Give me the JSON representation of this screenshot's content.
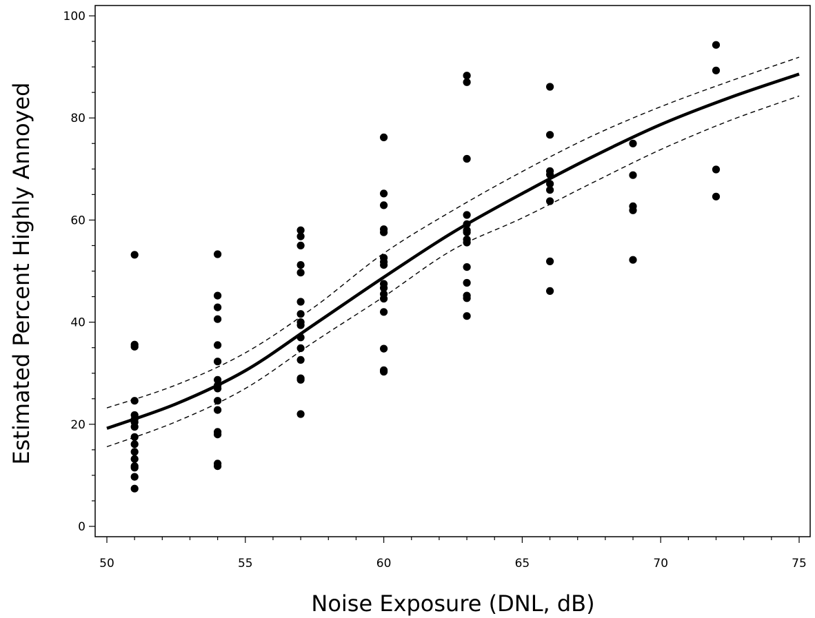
{
  "chart_data": {
    "type": "scatter",
    "title": "",
    "xlabel": "Noise Exposure (DNL, dB)",
    "ylabel": "Estimated Percent Highly Annoyed",
    "xlim": [
      49.6,
      75.6
    ],
    "ylim": [
      -3,
      102
    ],
    "x_ticks": [
      50,
      55,
      60,
      65,
      70,
      75
    ],
    "y_ticks": [
      0,
      20,
      40,
      60,
      80,
      100
    ],
    "x_minor_step": 1,
    "y_minor_step": 5,
    "grid": false,
    "legend": "none",
    "colors": {
      "points": "#000000",
      "fit": "#000000",
      "ci": "#000000"
    },
    "points": [
      {
        "x": 51,
        "y": 53.2
      },
      {
        "x": 51,
        "y": 35.6
      },
      {
        "x": 51,
        "y": 35.2
      },
      {
        "x": 51,
        "y": 24.6
      },
      {
        "x": 51,
        "y": 21.8
      },
      {
        "x": 51,
        "y": 21.0
      },
      {
        "x": 51,
        "y": 20.4
      },
      {
        "x": 51,
        "y": 19.5
      },
      {
        "x": 51,
        "y": 17.5
      },
      {
        "x": 51,
        "y": 16.1
      },
      {
        "x": 51,
        "y": 14.6
      },
      {
        "x": 51,
        "y": 13.2
      },
      {
        "x": 51,
        "y": 11.8
      },
      {
        "x": 51,
        "y": 11.5
      },
      {
        "x": 51,
        "y": 9.7
      },
      {
        "x": 51,
        "y": 7.4
      },
      {
        "x": 54,
        "y": 53.3
      },
      {
        "x": 54,
        "y": 45.2
      },
      {
        "x": 54,
        "y": 42.9
      },
      {
        "x": 54,
        "y": 40.6
      },
      {
        "x": 54,
        "y": 35.5
      },
      {
        "x": 54,
        "y": 32.3
      },
      {
        "x": 54,
        "y": 28.7
      },
      {
        "x": 54,
        "y": 27.6
      },
      {
        "x": 54,
        "y": 27.0
      },
      {
        "x": 54,
        "y": 24.6
      },
      {
        "x": 54,
        "y": 22.8
      },
      {
        "x": 54,
        "y": 18.5
      },
      {
        "x": 54,
        "y": 18.0
      },
      {
        "x": 54,
        "y": 12.3
      },
      {
        "x": 54,
        "y": 11.8
      },
      {
        "x": 57,
        "y": 58.0
      },
      {
        "x": 57,
        "y": 56.8
      },
      {
        "x": 57,
        "y": 55.0
      },
      {
        "x": 57,
        "y": 51.2
      },
      {
        "x": 57,
        "y": 49.7
      },
      {
        "x": 57,
        "y": 44.0
      },
      {
        "x": 57,
        "y": 41.6
      },
      {
        "x": 57,
        "y": 40.0
      },
      {
        "x": 57,
        "y": 39.4
      },
      {
        "x": 57,
        "y": 37.0
      },
      {
        "x": 57,
        "y": 34.9
      },
      {
        "x": 57,
        "y": 32.6
      },
      {
        "x": 57,
        "y": 29.0
      },
      {
        "x": 57,
        "y": 28.7
      },
      {
        "x": 57,
        "y": 22.0
      },
      {
        "x": 60,
        "y": 76.2
      },
      {
        "x": 60,
        "y": 65.2
      },
      {
        "x": 60,
        "y": 62.9
      },
      {
        "x": 60,
        "y": 58.2
      },
      {
        "x": 60,
        "y": 57.6
      },
      {
        "x": 60,
        "y": 52.6
      },
      {
        "x": 60,
        "y": 51.8
      },
      {
        "x": 60,
        "y": 51.2
      },
      {
        "x": 60,
        "y": 47.5
      },
      {
        "x": 60,
        "y": 46.7
      },
      {
        "x": 60,
        "y": 45.5
      },
      {
        "x": 60,
        "y": 44.6
      },
      {
        "x": 60,
        "y": 42.0
      },
      {
        "x": 60,
        "y": 34.8
      },
      {
        "x": 60,
        "y": 30.6
      },
      {
        "x": 60,
        "y": 30.3
      },
      {
        "x": 63,
        "y": 88.3
      },
      {
        "x": 63,
        "y": 87.0
      },
      {
        "x": 63,
        "y": 72.0
      },
      {
        "x": 63,
        "y": 61.0
      },
      {
        "x": 63,
        "y": 59.2
      },
      {
        "x": 63,
        "y": 58.0
      },
      {
        "x": 63,
        "y": 57.6
      },
      {
        "x": 63,
        "y": 56.2
      },
      {
        "x": 63,
        "y": 55.6
      },
      {
        "x": 63,
        "y": 50.8
      },
      {
        "x": 63,
        "y": 47.7
      },
      {
        "x": 63,
        "y": 45.2
      },
      {
        "x": 63,
        "y": 44.7
      },
      {
        "x": 63,
        "y": 41.2
      },
      {
        "x": 66,
        "y": 86.1
      },
      {
        "x": 66,
        "y": 76.7
      },
      {
        "x": 66,
        "y": 69.6
      },
      {
        "x": 66,
        "y": 68.9
      },
      {
        "x": 66,
        "y": 67.1
      },
      {
        "x": 66,
        "y": 65.9
      },
      {
        "x": 66,
        "y": 63.7
      },
      {
        "x": 66,
        "y": 51.9
      },
      {
        "x": 66,
        "y": 46.1
      },
      {
        "x": 69,
        "y": 75.0
      },
      {
        "x": 69,
        "y": 68.8
      },
      {
        "x": 69,
        "y": 62.7
      },
      {
        "x": 69,
        "y": 61.9
      },
      {
        "x": 69,
        "y": 52.2
      },
      {
        "x": 72,
        "y": 94.3
      },
      {
        "x": 72,
        "y": 89.3
      },
      {
        "x": 72,
        "y": 69.9
      },
      {
        "x": 72,
        "y": 64.6
      }
    ],
    "fit_line": {
      "x": [
        50,
        52.5,
        55,
        57.5,
        60,
        62.5,
        65,
        67.5,
        70,
        72.5,
        75
      ],
      "y": [
        19.2,
        24.0,
        30.5,
        39.6,
        48.8,
        57.6,
        65.2,
        72.3,
        78.7,
        84.0,
        88.6
      ]
    },
    "ci_upper": {
      "x": [
        50,
        52.5,
        55,
        57.5,
        60,
        62.5,
        65,
        67.5,
        70,
        72.5,
        75
      ],
      "y": [
        23.2,
        27.7,
        34.0,
        43.0,
        53.5,
        61.9,
        69.5,
        76.4,
        82.2,
        87.2,
        91.9
      ]
    },
    "ci_lower": {
      "x": [
        50,
        52.5,
        55,
        57.5,
        60,
        62.5,
        65,
        67.5,
        70,
        72.5,
        75
      ],
      "y": [
        15.6,
        20.5,
        27.0,
        36.2,
        45.0,
        54.2,
        60.4,
        67.2,
        73.8,
        79.5,
        84.3
      ]
    }
  }
}
